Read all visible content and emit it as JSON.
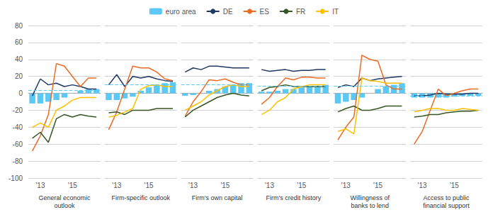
{
  "chart_data": [
    {
      "type": "bar",
      "x_label": "General economic\noutlook",
      "legend": "top",
      "grid": true,
      "categories": [
        null,
        "'13",
        null,
        null,
        null,
        "'15",
        null,
        null,
        null
      ],
      "ylim": [
        -100,
        80
      ],
      "yticks": [
        -100,
        -80,
        -60,
        -40,
        -20,
        0,
        20,
        40,
        60,
        80
      ],
      "series": [
        {
          "name": "euro area",
          "type": "bar",
          "color": "#5BC8F5",
          "values": [
            -12,
            -12,
            -10,
            -8,
            -5,
            0,
            3,
            5,
            5
          ],
          "average": 3.25
        },
        {
          "name": "DE",
          "type": "line",
          "color": "#1F3864",
          "values": [
            -3,
            17,
            10,
            12,
            8,
            10,
            8,
            5,
            5
          ]
        },
        {
          "name": "ES",
          "type": "line",
          "color": "#E96B25",
          "values": [
            -68,
            -50,
            -25,
            35,
            32,
            20,
            8,
            18,
            18
          ]
        },
        {
          "name": "FR",
          "type": "line",
          "color": "#375623",
          "values": [
            -53,
            -46,
            -58,
            -30,
            -25,
            -28,
            -25,
            -27,
            -28
          ]
        },
        {
          "name": "IT",
          "type": "line",
          "color": "#FFC000",
          "values": [
            -40,
            -35,
            -40,
            -20,
            -15,
            -8,
            -5,
            -5,
            -5
          ]
        }
      ]
    },
    {
      "type": "bar",
      "x_label": "Firm-specific outlook",
      "grid": true,
      "tick_labels": "x",
      "categories": [
        null,
        "'13",
        null,
        null,
        null,
        "'15",
        null,
        null,
        null
      ],
      "ylim": [
        -100,
        80
      ],
      "yticks": [
        -100,
        -80,
        -60,
        -40,
        -20,
        0,
        20,
        40,
        60,
        80
      ],
      "series": [
        {
          "name": "euro area",
          "type": "bar",
          "color": "#5BC8F5",
          "values": [
            -8,
            -8,
            -6,
            -4,
            3,
            7,
            10,
            12,
            13
          ],
          "average": 10.5
        },
        {
          "name": "DE",
          "type": "line",
          "color": "#1F3864",
          "values": [
            10,
            22,
            8,
            20,
            18,
            20,
            17,
            15,
            14
          ]
        },
        {
          "name": "ES",
          "type": "line",
          "color": "#E96B25",
          "values": [
            -43,
            -22,
            5,
            32,
            30,
            30,
            25,
            17,
            15
          ]
        },
        {
          "name": "FR",
          "type": "line",
          "color": "#375623",
          "values": [
            -23,
            -22,
            -25,
            -20,
            -20,
            -20,
            -18,
            -18,
            -18
          ]
        },
        {
          "name": "IT",
          "type": "line",
          "color": "#FFC000",
          "values": [
            -28,
            -26,
            -22,
            -18,
            5,
            9,
            10,
            8,
            8
          ]
        }
      ]
    },
    {
      "type": "bar",
      "x_label": "Firm's own capital",
      "grid": true,
      "tick_labels": "x",
      "categories": [
        null,
        "'13",
        null,
        null,
        null,
        "'15",
        null,
        null,
        null
      ],
      "ylim": [
        -100,
        80
      ],
      "yticks": [
        -100,
        -80,
        -60,
        -40,
        -20,
        0,
        20,
        40,
        60,
        80
      ],
      "series": [
        {
          "name": "euro area",
          "type": "bar",
          "color": "#5BC8F5",
          "values": [
            -3,
            -2,
            0,
            3,
            5,
            8,
            10,
            12,
            12
          ],
          "average": 10.5
        },
        {
          "name": "DE",
          "type": "line",
          "color": "#1F3864",
          "values": [
            25,
            30,
            28,
            32,
            32,
            31,
            30,
            30,
            30
          ]
        },
        {
          "name": "ES",
          "type": "line",
          "color": "#E96B25",
          "values": [
            -27,
            -10,
            2,
            16,
            15,
            17,
            13,
            10,
            10
          ]
        },
        {
          "name": "FR",
          "type": "line",
          "color": "#375623",
          "values": [
            -28,
            -20,
            -15,
            -10,
            -5,
            -2,
            0,
            -2,
            -3
          ]
        },
        {
          "name": "IT",
          "type": "line",
          "color": "#FFC000",
          "values": [
            -20,
            -15,
            -10,
            -2,
            3,
            8,
            10,
            8,
            8
          ]
        }
      ]
    },
    {
      "type": "bar",
      "x_label": "Firm's credit history",
      "grid": true,
      "tick_labels": "x",
      "categories": [
        null,
        "'13",
        null,
        null,
        null,
        "'15",
        null,
        null,
        null
      ],
      "ylim": [
        -100,
        80
      ],
      "yticks": [
        -100,
        -80,
        -60,
        -40,
        -20,
        0,
        20,
        40,
        60,
        80
      ],
      "series": [
        {
          "name": "euro area",
          "type": "bar",
          "color": "#5BC8F5",
          "values": [
            2,
            2,
            3,
            5,
            5,
            7,
            8,
            9,
            10
          ],
          "average": 8.5
        },
        {
          "name": "DE",
          "type": "line",
          "color": "#1F3864",
          "values": [
            28,
            26,
            27,
            28,
            26,
            27,
            27,
            28,
            28
          ]
        },
        {
          "name": "ES",
          "type": "line",
          "color": "#E96B25",
          "values": [
            -13,
            -5,
            8,
            18,
            16,
            19,
            19,
            18,
            18
          ]
        },
        {
          "name": "FR",
          "type": "line",
          "color": "#375623",
          "values": [
            3,
            7,
            8,
            10,
            8,
            8,
            8,
            8,
            8
          ]
        },
        {
          "name": "IT",
          "type": "line",
          "color": "#FFC000",
          "values": [
            -25,
            -20,
            -10,
            -5,
            5,
            8,
            10,
            10,
            10
          ]
        }
      ]
    },
    {
      "type": "bar",
      "x_label": "Willingness of\nbanks to lend",
      "grid": true,
      "tick_labels": "x",
      "categories": [
        null,
        "'13",
        null,
        null,
        null,
        "'15",
        null,
        null,
        null
      ],
      "ylim": [
        -100,
        80
      ],
      "yticks": [
        -100,
        -80,
        -60,
        -40,
        -20,
        0,
        20,
        40,
        60,
        80
      ],
      "series": [
        {
          "name": "euro area",
          "type": "bar",
          "color": "#5BC8F5",
          "values": [
            -12,
            -10,
            -8,
            -5,
            0,
            5,
            8,
            10,
            12
          ],
          "average": 8.75
        },
        {
          "name": "DE",
          "type": "line",
          "color": "#1F3864",
          "values": [
            7,
            10,
            8,
            18,
            15,
            17,
            18,
            19,
            20
          ]
        },
        {
          "name": "ES",
          "type": "line",
          "color": "#E96B25",
          "values": [
            -55,
            -40,
            -28,
            45,
            40,
            38,
            10,
            5,
            5
          ]
        },
        {
          "name": "FR",
          "type": "line",
          "color": "#375623",
          "values": [
            -22,
            -18,
            -15,
            -20,
            -20,
            -18,
            -15,
            -15,
            -15
          ]
        },
        {
          "name": "IT",
          "type": "line",
          "color": "#FFC000",
          "values": [
            -45,
            -42,
            -48,
            18,
            15,
            14,
            12,
            12,
            12
          ]
        }
      ]
    },
    {
      "type": "bar",
      "x_label": "Access to public\nfinancial support",
      "grid": true,
      "tick_labels": "x",
      "categories": [
        null,
        "'13",
        null,
        null,
        null,
        "'15",
        null,
        null,
        null
      ],
      "ylim": [
        -100,
        80
      ],
      "yticks": [
        -100,
        -80,
        -60,
        -40,
        -20,
        0,
        20,
        40,
        60,
        80
      ],
      "series": [
        {
          "name": "euro area",
          "type": "bar",
          "color": "#5BC8F5",
          "values": [
            -5,
            -5,
            -5,
            -5,
            -5,
            -4,
            -3,
            -3,
            -3
          ],
          "average": -3.25
        },
        {
          "name": "DE",
          "type": "line",
          "color": "#1F3864",
          "values": [
            -3,
            -3,
            -2,
            0,
            -1,
            -1,
            -1,
            0,
            0
          ]
        },
        {
          "name": "ES",
          "type": "line",
          "color": "#E96B25",
          "values": [
            -60,
            -45,
            -20,
            5,
            -3,
            0,
            3,
            5,
            5
          ]
        },
        {
          "name": "FR",
          "type": "line",
          "color": "#375623",
          "values": [
            -28,
            -27,
            -25,
            -25,
            -23,
            -22,
            -21,
            -21,
            -20
          ]
        },
        {
          "name": "IT",
          "type": "line",
          "color": "#FFC000",
          "values": [
            -22,
            -20,
            -18,
            -18,
            -20,
            -20,
            -18,
            -19,
            -20
          ]
        }
      ]
    }
  ]
}
